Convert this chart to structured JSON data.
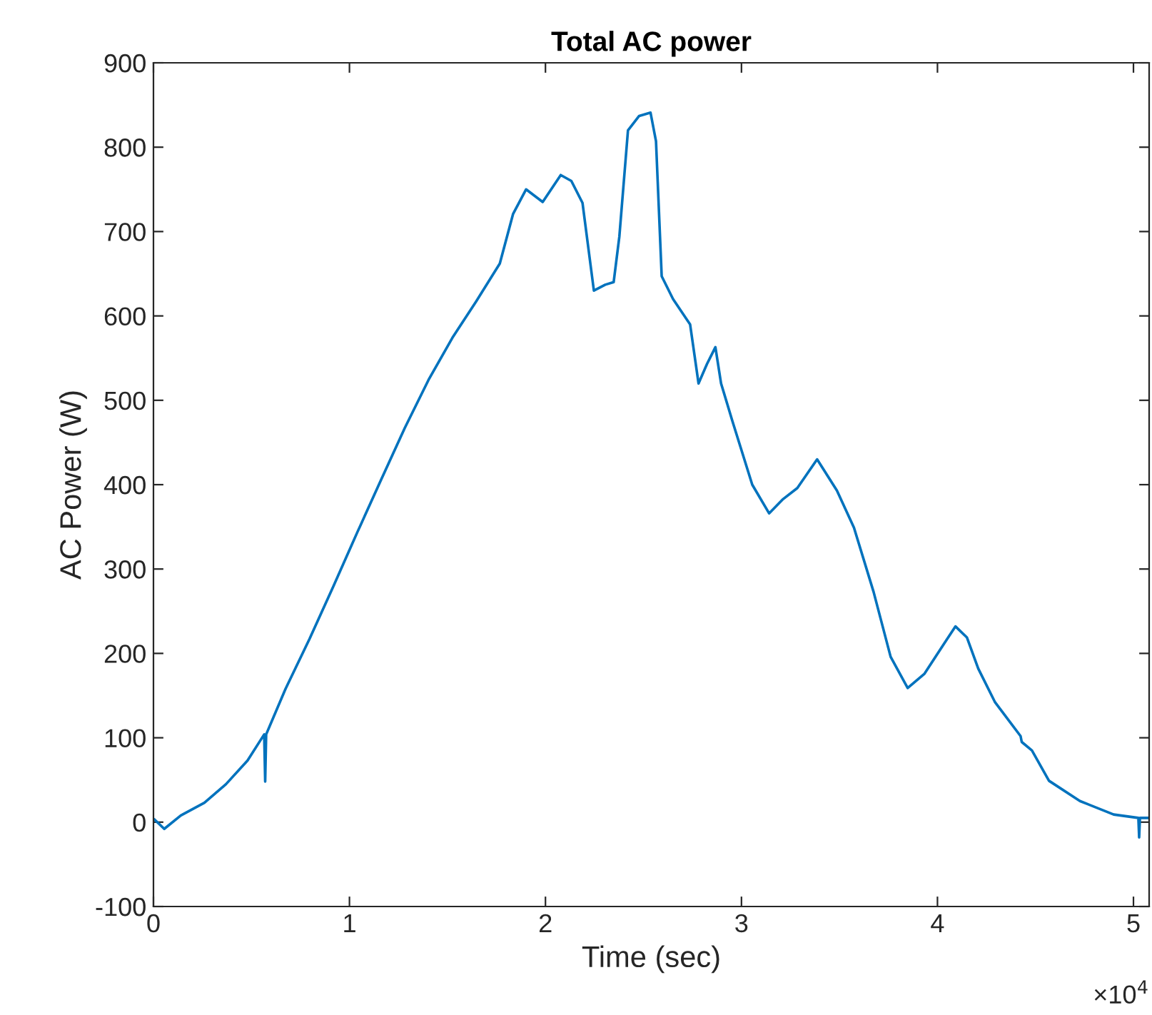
{
  "chart_data": {
    "type": "line",
    "title": "Total AC power",
    "xlabel": "Time (sec)",
    "ylabel": "AC Power (W)",
    "annotations": [
      "×10$^{4}$"
    ],
    "xlim": [
      0,
      5.08
    ],
    "ylim": [
      -100,
      900
    ],
    "xticks": [
      0,
      1,
      2,
      3,
      4,
      5
    ],
    "yticks": [
      -100,
      0,
      100,
      200,
      300,
      400,
      500,
      600,
      700,
      800,
      900
    ],
    "grid": false,
    "legend": false,
    "marker": "none",
    "line_style": "solid",
    "series": [
      {
        "color": "#0072bd",
        "x": [
          0.006,
          0.055,
          0.14,
          0.26,
          0.37,
          0.48,
          0.565,
          0.57,
          0.575,
          0.674,
          0.796,
          0.917,
          1.039,
          1.16,
          1.282,
          1.403,
          1.525,
          1.646,
          1.767,
          1.835,
          1.901,
          1.986,
          2.078,
          2.132,
          2.189,
          2.247,
          2.305,
          2.348,
          2.377,
          2.421,
          2.478,
          2.536,
          2.564,
          2.593,
          2.651,
          2.738,
          2.781,
          2.824,
          2.867,
          2.896,
          2.953,
          3.055,
          3.141,
          3.213,
          3.285,
          3.386,
          3.487,
          3.574,
          3.674,
          3.761,
          3.848,
          3.934,
          4.035,
          4.092,
          4.15,
          4.208,
          4.294,
          4.424,
          4.43,
          4.482,
          4.569,
          4.727,
          4.899,
          5.025,
          5.029,
          5.033,
          5.08
        ],
        "values": [
          3,
          -8,
          8,
          23,
          45,
          73,
          104,
          48,
          104,
          158,
          217,
          279,
          343,
          405,
          467,
          524,
          574,
          617,
          662,
          721,
          750,
          735,
          767,
          760,
          734,
          630,
          637,
          640,
          694,
          820,
          837,
          841,
          807,
          647,
          620,
          590,
          520,
          543,
          563,
          520,
          476,
          400,
          366,
          383,
          396,
          430,
          393,
          349,
          273,
          196,
          159,
          176,
          212,
          232,
          219,
          182,
          142,
          102,
          95,
          85,
          49,
          25,
          9,
          5,
          -18,
          5,
          5
        ]
      }
    ]
  }
}
